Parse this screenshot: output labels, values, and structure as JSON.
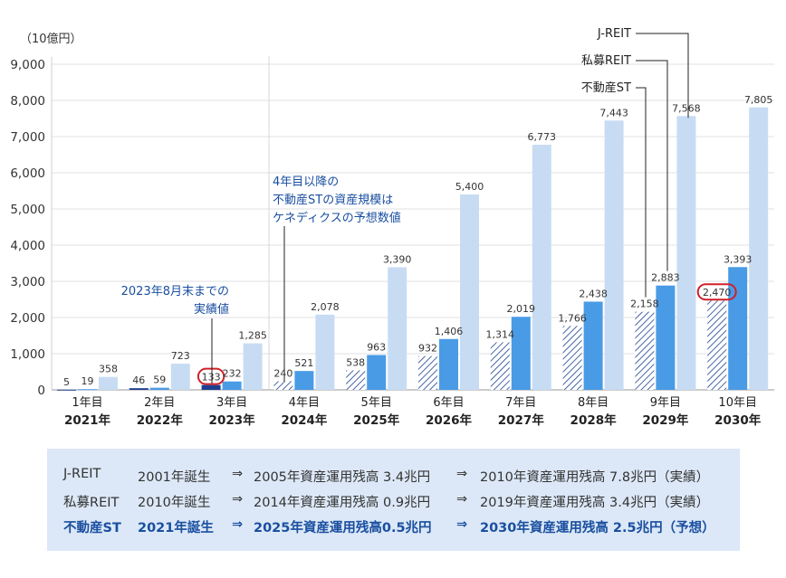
{
  "chart_data": {
    "type": "bar",
    "unit_label": "（10億円）",
    "y_ticks": [
      "9,000",
      "8,000",
      "7,000",
      "6,000",
      "5,000",
      "4,000",
      "3,000",
      "2,000",
      "1,000",
      "0"
    ],
    "ylim": [
      0,
      9000
    ],
    "categories": [
      {
        "year_no": "1年目",
        "year": "2021年"
      },
      {
        "year_no": "2年目",
        "year": "2022年"
      },
      {
        "year_no": "3年目",
        "year": "2023年"
      },
      {
        "year_no": "4年目",
        "year": "2024年"
      },
      {
        "year_no": "5年目",
        "year": "2025年"
      },
      {
        "year_no": "6年目",
        "year": "2026年"
      },
      {
        "year_no": "7年目",
        "year": "2027年"
      },
      {
        "year_no": "8年目",
        "year": "2028年"
      },
      {
        "year_no": "9年目",
        "year": "2029年"
      },
      {
        "year_no": "10年目",
        "year": "2030年"
      }
    ],
    "series": [
      {
        "name": "不動産ST",
        "values": [
          5,
          46,
          133,
          240,
          538,
          932,
          1314,
          1766,
          2158,
          2470
        ],
        "labels": [
          "5",
          "46",
          "133",
          "240",
          "538",
          "932",
          "1,314",
          "1,766",
          "2,158",
          "2,470"
        ]
      },
      {
        "name": "私募REIT",
        "values": [
          19,
          59,
          232,
          521,
          963,
          1406,
          2019,
          2438,
          2883,
          3393
        ],
        "labels": [
          "19",
          "59",
          "232",
          "521",
          "963",
          "1,406",
          "2,019",
          "2,438",
          "2,883",
          "3,393"
        ]
      },
      {
        "name": "J-REIT",
        "values": [
          358,
          723,
          1285,
          2078,
          3390,
          5400,
          6773,
          7443,
          7568,
          7805
        ],
        "labels": [
          "358",
          "723",
          "1,285",
          "2,078",
          "3,390",
          "5,400",
          "6,773",
          "7,443",
          "7,568",
          "7,805"
        ]
      }
    ],
    "annotations": {
      "actual": [
        "2023年8月末までの",
        "実績値"
      ],
      "forecast": [
        "4年目以降の",
        "不動産STの資産規模は",
        "ケネディクスの予想数値"
      ]
    },
    "colors": {
      "st_actual": "#1c3f8f",
      "st_forecast_stripe": "#1c3f8f",
      "private_reit": "#4a9be6",
      "jreit": "#c7dcf3",
      "annotation_text": "#1a4fa0",
      "highlight_circle": "#d0202a"
    }
  },
  "summary": {
    "rows": [
      {
        "name": "J-REIT",
        "born": "2001年誕生",
        "arrow": "⇒",
        "mid": "2005年資産運用残高 3.4兆円",
        "arrow2": "⇒",
        "end": "2010年資産運用残高 7.8兆円（実績）"
      },
      {
        "name": "私募REIT",
        "born": "2010年誕生",
        "arrow": "⇒",
        "mid": "2014年資産運用残高 0.9兆円",
        "arrow2": "⇒",
        "end": "2019年資産運用残高 3.4兆円（実績）"
      },
      {
        "name": "不動産ST",
        "born": "2021年誕生",
        "arrow": "⇒",
        "mid": "2025年資産運用残高0.5兆円",
        "arrow2": "⇒",
        "end": "2030年資産運用残高 2.5兆円（予想）"
      }
    ]
  }
}
